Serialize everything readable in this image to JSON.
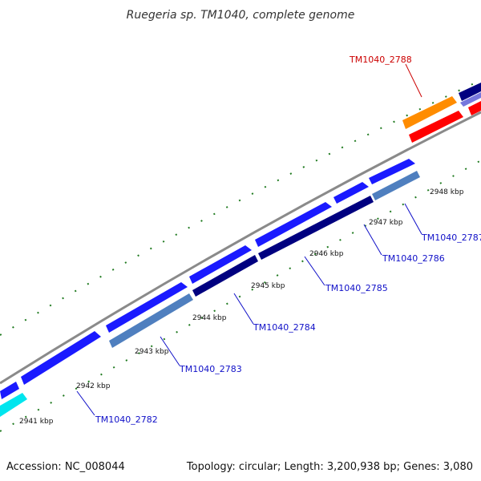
{
  "title": "Ruegeria sp. TM1040, complete genome",
  "footer": {
    "accession": "Accession: NC_008044",
    "topology": "Topology: circular; Length: 3,200,938 bp; Genes: 3,080"
  },
  "colors": {
    "backbone": "#8a8a8a",
    "tick": "#1f7a1f",
    "label_default": "#1010c8",
    "label_highlight": "#cc0000"
  },
  "scale": {
    "unit": "kbp",
    "labels": [
      {
        "kbp": 2941,
        "text": "2941 kbp"
      },
      {
        "kbp": 2942,
        "text": "2942 kbp"
      },
      {
        "kbp": 2943,
        "text": "2943 kbp"
      },
      {
        "kbp": 2944,
        "text": "2944 kbp"
      },
      {
        "kbp": 2945,
        "text": "2945 kbp"
      },
      {
        "kbp": 2946,
        "text": "2946 kbp"
      },
      {
        "kbp": 2947,
        "text": "2947 kbp"
      },
      {
        "kbp": 2948,
        "text": "2948 kbp"
      }
    ]
  },
  "genes": [
    {
      "id": "TM1040_2782",
      "color": "#00e5ee",
      "strand": "-",
      "label_color": "#1010c8"
    },
    {
      "id": "TM1040_2783",
      "color": "#4f7fbf",
      "strand": "-",
      "label_color": "#1010c8"
    },
    {
      "id": "TM1040_2784",
      "color": "#000080",
      "strand": "-",
      "label_color": "#1010c8"
    },
    {
      "id": "TM1040_2785",
      "color": "#000080",
      "strand": "-",
      "label_color": "#1010c8"
    },
    {
      "id": "TM1040_2786",
      "color": "#000080",
      "strand": "-",
      "label_color": "#1010c8"
    },
    {
      "id": "TM1040_2787",
      "color": "#4f7fbf",
      "strand": "-",
      "label_color": "#1010c8"
    },
    {
      "id": "TM1040_2788",
      "color": "#ff8c00",
      "strand": "+",
      "label_color": "#cc0000"
    }
  ]
}
